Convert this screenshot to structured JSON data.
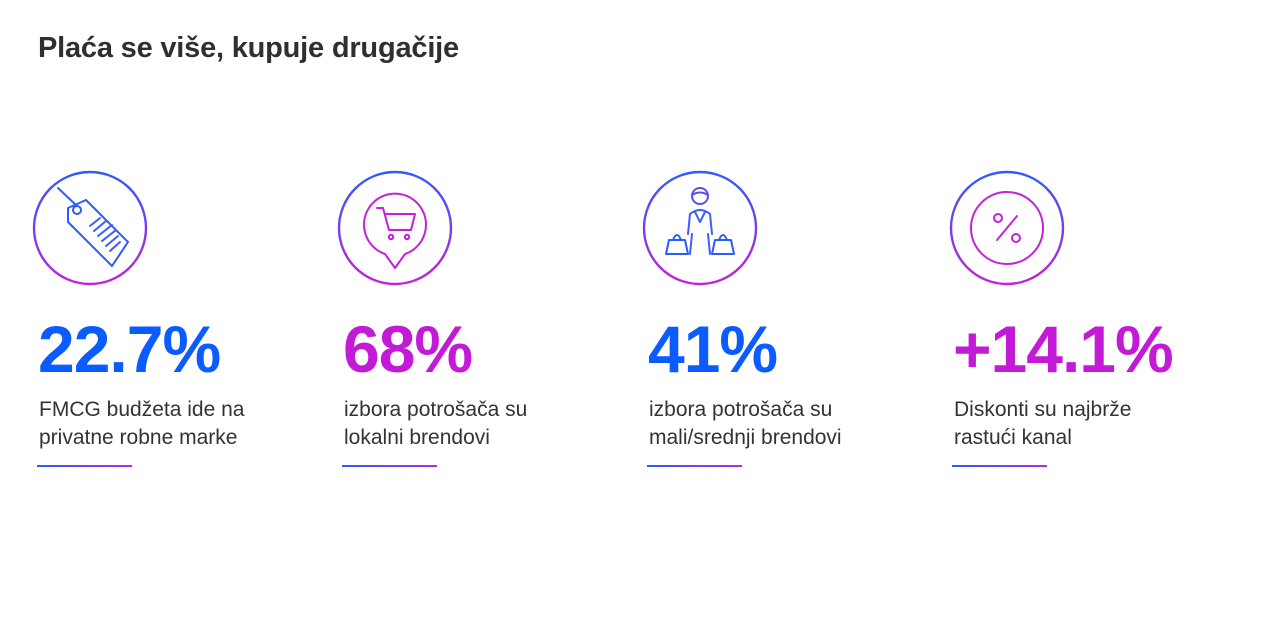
{
  "title": "Plaća se više, kupuje drugačije",
  "colors": {
    "blue": "#0a5cff",
    "magenta": "#c21ad6",
    "gradient_start": "#2f5bff",
    "gradient_end": "#b52ae0"
  },
  "stats": [
    {
      "icon": "price-tag-icon",
      "value": "22.7%",
      "color": "blue",
      "line1": "FMCG budžeta ide na",
      "line2": "privatne robne marke"
    },
    {
      "icon": "shopping-cart-pin-icon",
      "value": "68%",
      "color": "magenta",
      "line1": "izbora potrošača su",
      "line2": "lokalni brendovi"
    },
    {
      "icon": "shopper-with-bags-icon",
      "value": "41%",
      "color": "blue",
      "line1": "izbora potrošača su",
      "line2": "mali/srednji brendovi"
    },
    {
      "icon": "percent-icon",
      "value": "+14.1%",
      "color": "magenta",
      "line1": "Diskonti su najbrže",
      "line2": "rastući kanal"
    }
  ]
}
